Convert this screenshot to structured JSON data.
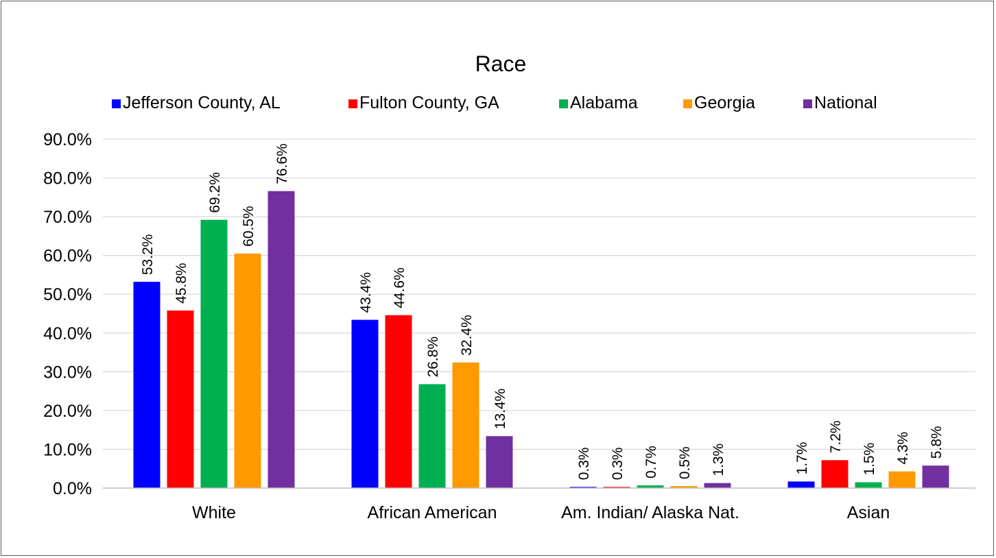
{
  "chart_data": {
    "type": "bar",
    "title": "Race",
    "xlabel": "",
    "ylabel": "",
    "categories": [
      "White",
      "African American",
      "Am. Indian/ Alaska Nat.",
      "Asian"
    ],
    "series": [
      {
        "name": "Jefferson County, AL",
        "color": "#0000FF",
        "values": [
          53.2,
          43.4,
          0.3,
          1.7
        ],
        "labels": [
          "53.2%",
          "43.4%",
          "0.3%",
          "1.7%"
        ]
      },
      {
        "name": "Fulton County, GA",
        "color": "#FF0000",
        "values": [
          45.8,
          44.6,
          0.3,
          7.2
        ],
        "labels": [
          "45.8%",
          "44.6%",
          "0.3%",
          "7.2%"
        ]
      },
      {
        "name": "Alabama",
        "color": "#00B050",
        "values": [
          69.2,
          26.8,
          0.7,
          1.5
        ],
        "labels": [
          "69.2%",
          "26.8%",
          "0.7%",
          "1.5%"
        ]
      },
      {
        "name": "Georgia",
        "color": "#FF9900",
        "values": [
          60.5,
          32.4,
          0.5,
          4.3
        ],
        "labels": [
          "60.5%",
          "32.4%",
          "0.5%",
          "4.3%"
        ]
      },
      {
        "name": "National",
        "color": "#7030A0",
        "values": [
          76.6,
          13.4,
          1.3,
          5.8
        ],
        "labels": [
          "76.6%",
          "13.4%",
          "1.3%",
          "5.8%"
        ]
      }
    ],
    "ylim": [
      0,
      90
    ],
    "yticks": [
      0,
      10,
      20,
      30,
      40,
      50,
      60,
      70,
      80,
      90
    ],
    "ytick_labels": [
      "0.0%",
      "10.0%",
      "20.0%",
      "30.0%",
      "40.0%",
      "50.0%",
      "60.0%",
      "70.0%",
      "80.0%",
      "90.0%"
    ],
    "grid": true,
    "legend": "top"
  }
}
